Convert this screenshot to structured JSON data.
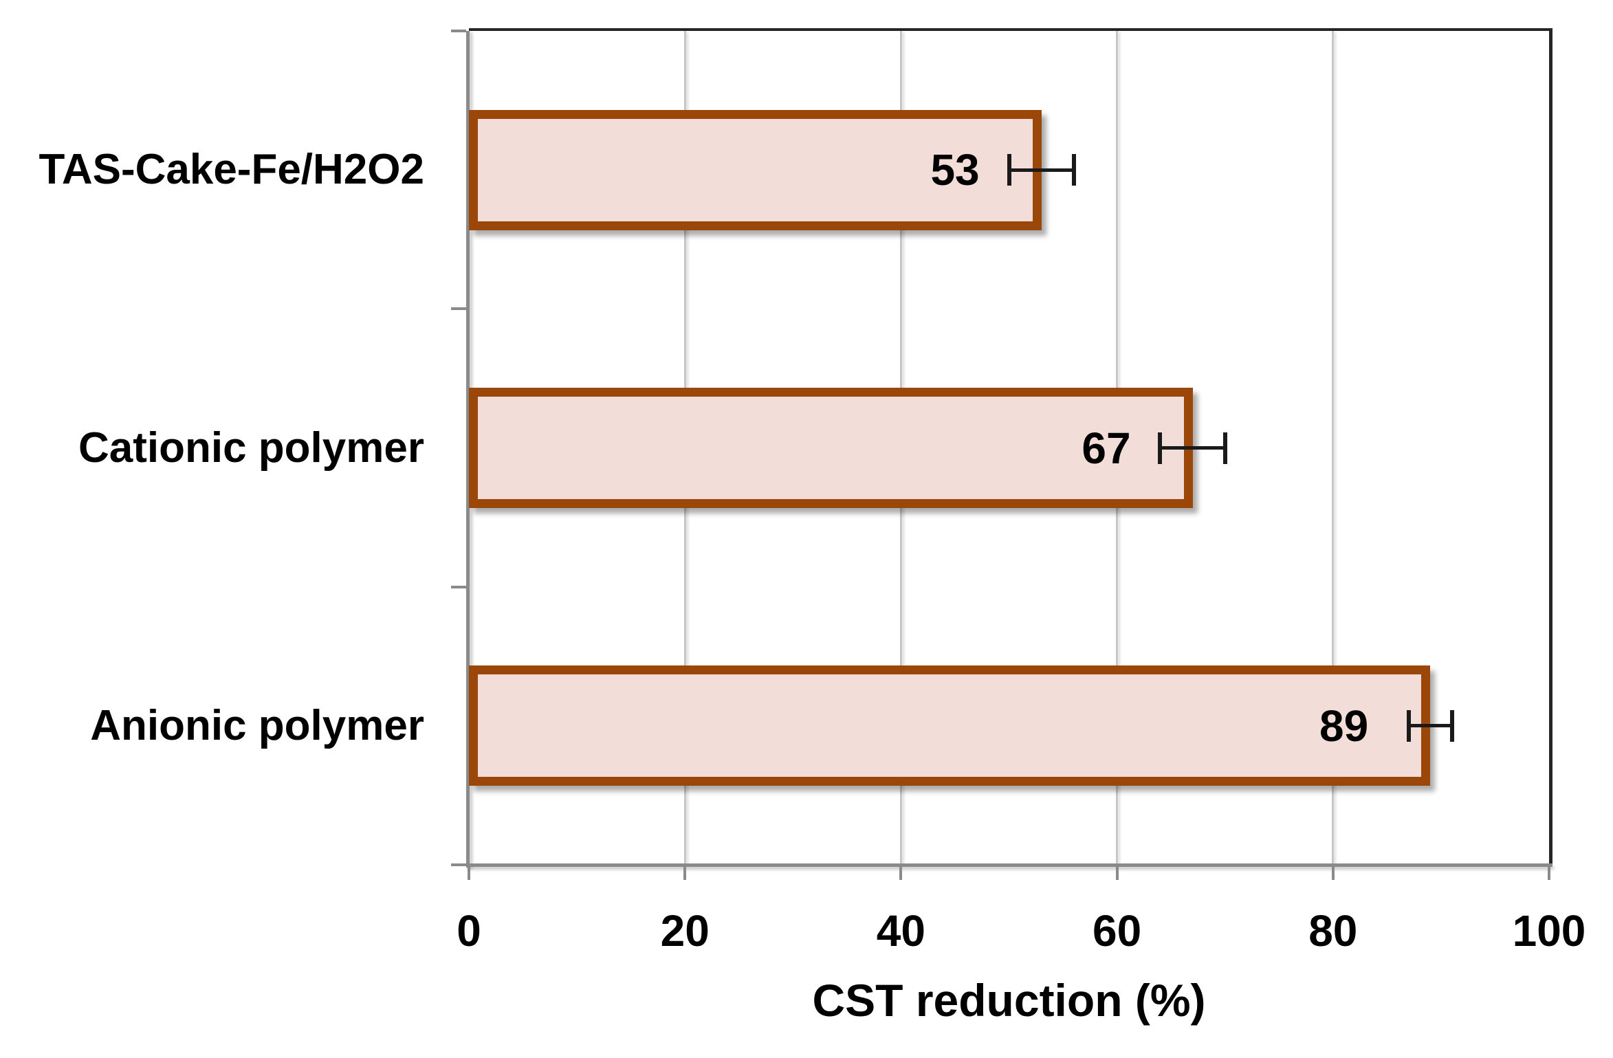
{
  "chart_data": {
    "type": "bar",
    "orientation": "horizontal",
    "title": "",
    "xlabel": "CST reduction (%)",
    "ylabel": "",
    "categories": [
      "TAS-Cake-Fe/H2O2",
      "Cationic polymer",
      "Anionic polymer"
    ],
    "values": [
      53,
      67,
      89
    ],
    "value_labels": [
      "53",
      "67",
      "89"
    ],
    "error_bars": [
      3,
      3,
      2
    ],
    "xlim": [
      0,
      100
    ],
    "xticks": [
      0,
      20,
      40,
      60,
      80,
      100
    ],
    "xtick_labels": [
      "0",
      "20",
      "40",
      "60",
      "80",
      "100"
    ],
    "grid": true,
    "legend_position": "none",
    "colors": {
      "bar_fill": "#F2DDD9",
      "bar_border": "#9B4709",
      "gridline": "#C6C6C6",
      "axis_line": "#8A8A8A",
      "frame": "#262626",
      "error_bar": "#1A1A1A",
      "text": "#000000",
      "background": "#FFFFFF"
    }
  }
}
